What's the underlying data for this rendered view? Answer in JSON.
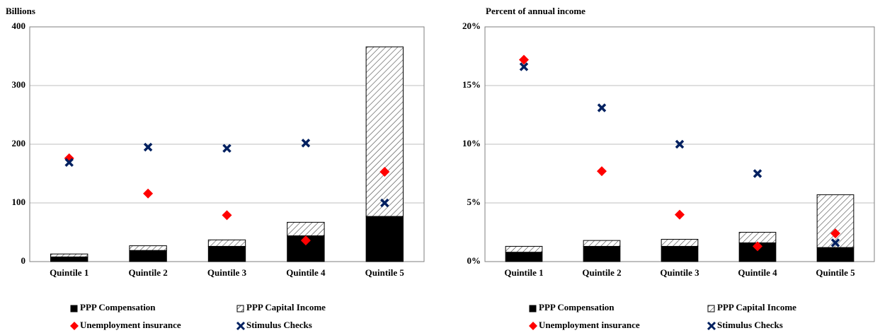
{
  "chart_data": [
    {
      "type": "bar",
      "y_label": "Billions",
      "categories": [
        "Quintile 1",
        "Quintile 2",
        "Quintile 3",
        "Quintile 4",
        "Quintile 5"
      ],
      "ylim": [
        0,
        400
      ],
      "yticks": [
        0,
        100,
        200,
        300,
        400
      ],
      "grid": true,
      "series": [
        {
          "name": "PPP Compensation",
          "mark": "bar",
          "color": "#000000",
          "values": [
            8,
            19,
            26,
            44,
            77
          ]
        },
        {
          "name": "PPP Capital Income",
          "mark": "bar",
          "color": "#000000",
          "pattern": "hatch",
          "values": [
            5,
            8,
            11,
            23,
            289
          ]
        },
        {
          "name": "Unemployment insurance",
          "mark": "scatter",
          "marker": "diamond",
          "color": "#ff0000",
          "values": [
            176,
            116,
            79,
            36,
            153
          ]
        },
        {
          "name": "Stimulus Checks",
          "mark": "scatter",
          "marker": "x",
          "color": "#002060",
          "values": [
            169,
            195,
            193,
            202,
            100
          ]
        }
      ]
    },
    {
      "type": "bar",
      "y_label": "Percent of annual income",
      "categories": [
        "Quintile 1",
        "Quintile 2",
        "Quintile 3",
        "Quintile 4",
        "Quintile 5"
      ],
      "ylim": [
        0,
        20
      ],
      "yticks": [
        {
          "value": 0,
          "label": "0%"
        },
        {
          "value": 5,
          "label": "5%"
        },
        {
          "value": 10,
          "label": "10%"
        },
        {
          "value": 15,
          "label": "15%"
        },
        {
          "value": 20,
          "label": "20%"
        }
      ],
      "grid": true,
      "series": [
        {
          "name": "PPP Compensation",
          "mark": "bar",
          "color": "#000000",
          "values": [
            0.8,
            1.3,
            1.3,
            1.6,
            1.2
          ]
        },
        {
          "name": "PPP Capital Income",
          "mark": "bar",
          "color": "#000000",
          "pattern": "hatch",
          "values": [
            0.5,
            0.5,
            0.6,
            0.9,
            4.5
          ]
        },
        {
          "name": "Unemployment insurance",
          "mark": "scatter",
          "marker": "diamond",
          "color": "#ff0000",
          "values": [
            17.2,
            7.7,
            4.0,
            1.3,
            2.4
          ]
        },
        {
          "name": "Stimulus Checks",
          "mark": "scatter",
          "marker": "x",
          "color": "#002060",
          "values": [
            16.6,
            13.1,
            10.0,
            7.5,
            1.6
          ]
        }
      ]
    }
  ]
}
